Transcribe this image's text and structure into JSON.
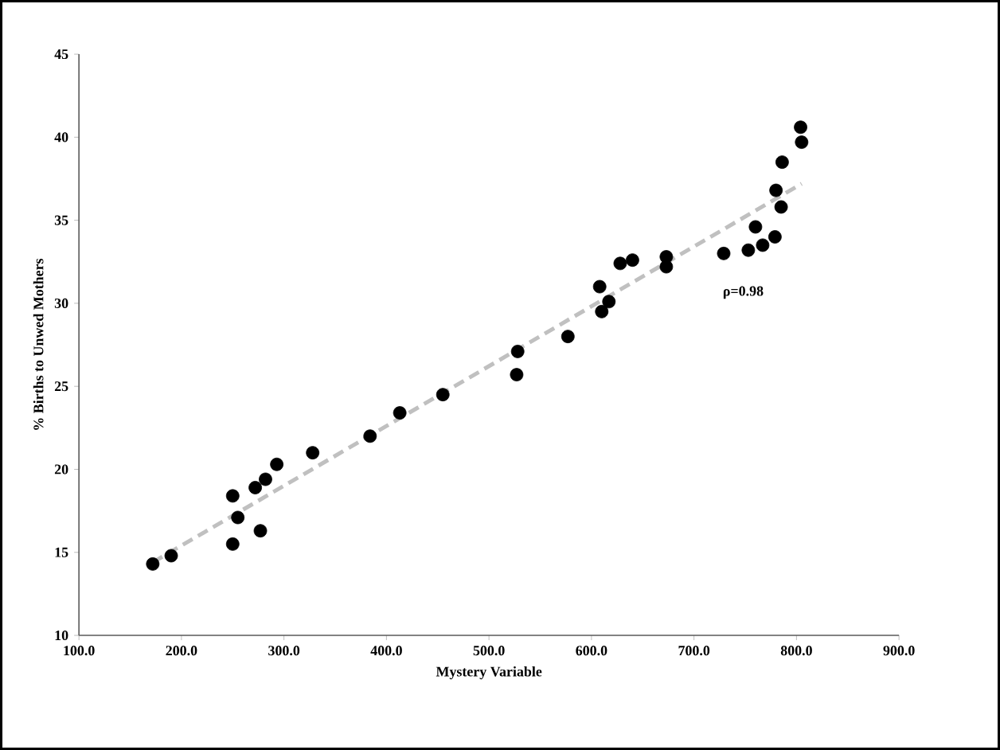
{
  "chart_data": {
    "type": "scatter",
    "xlabel": "Mystery Variable",
    "ylabel": "% Births to Unwed Mothers",
    "xlim": [
      100,
      900
    ],
    "ylim": [
      10,
      45
    ],
    "xticks": [
      {
        "value": 100,
        "label": "100.0"
      },
      {
        "value": 200,
        "label": "200.0"
      },
      {
        "value": 300,
        "label": "300.0"
      },
      {
        "value": 400,
        "label": "400.0"
      },
      {
        "value": 500,
        "label": "500.0"
      },
      {
        "value": 600,
        "label": "600.0"
      },
      {
        "value": 700,
        "label": "700.0"
      },
      {
        "value": 800,
        "label": "800.0"
      },
      {
        "value": 900,
        "label": "900.0"
      }
    ],
    "yticks": [
      10,
      15,
      20,
      25,
      30,
      35,
      40,
      45
    ],
    "marker": "circle",
    "grid": false,
    "series": [
      {
        "color": "#000000",
        "x": [
          172,
          190,
          250,
          250,
          255,
          272,
          277,
          282,
          293,
          328,
          384,
          413,
          455,
          527,
          528,
          577,
          608,
          610,
          617,
          628,
          640,
          673,
          673,
          729,
          753,
          760,
          767,
          779,
          780,
          785,
          786,
          804,
          805
        ],
        "values": [
          14.3,
          14.8,
          15.5,
          18.4,
          17.1,
          18.9,
          16.3,
          19.4,
          20.3,
          21.0,
          22.0,
          23.4,
          24.5,
          25.7,
          27.1,
          28.0,
          31.0,
          29.5,
          30.1,
          32.4,
          32.6,
          32.8,
          32.2,
          33.0,
          33.2,
          34.6,
          33.5,
          34.0,
          36.8,
          35.8,
          38.5,
          40.6,
          39.7
        ]
      },
      {
        "type": "line",
        "color": "#c0c0c0",
        "line_style": "dashed",
        "marker": "none",
        "x": [
          172,
          805
        ],
        "values": [
          14.4,
          37.2
        ]
      }
    ],
    "annotations": [
      "ρ=0.98"
    ]
  }
}
